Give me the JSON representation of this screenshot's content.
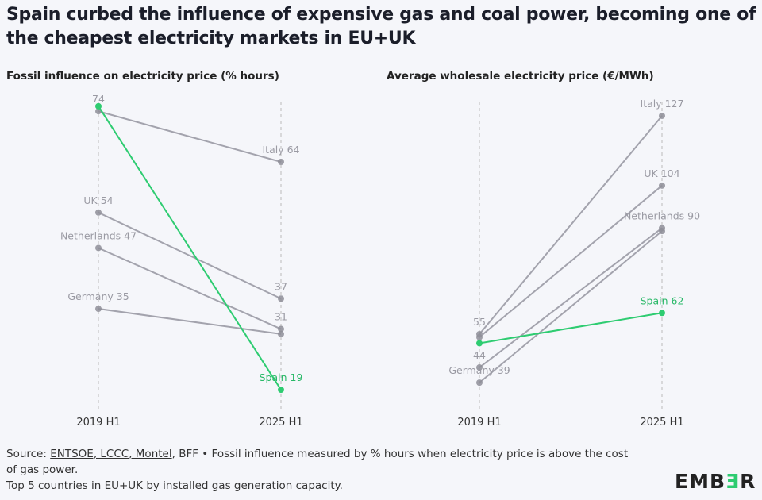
{
  "title": "Spain curbed the influence of expensive gas and coal power, becoming one of the cheapest electricity markets in EU+UK",
  "footer": {
    "source_label": "Source: ",
    "source_links": "ENTSOE, LCCC, Montel",
    "source_rest": ", BFF • Fossil influence measured by % hours when electricity price is above the cost of gas power.",
    "note": "Top 5 countries in EU+UK by installed gas generation capacity."
  },
  "logo": {
    "pre": "EMB",
    "mid": "Ǝ",
    "post": "R",
    "text": "EMBER"
  },
  "colors": {
    "grey": "#a3a3ad",
    "spain": "#2ecc71",
    "label_grey": "#9a9aa3"
  },
  "chart_data": [
    {
      "type": "line",
      "title": "Fossil influence on electricity price (% hours)",
      "categories": [
        "2019 H1",
        "2025 H1"
      ],
      "ylim": [
        15,
        80
      ],
      "series": [
        {
          "name": "Italy",
          "values": [
            74,
            64
          ],
          "labels": [
            "74",
            "Italy 64"
          ]
        },
        {
          "name": "UK",
          "values": [
            54,
            37
          ],
          "labels": [
            "UK 54",
            "37"
          ]
        },
        {
          "name": "Netherlands",
          "values": [
            47,
            31
          ],
          "labels": [
            "Netherlands 47",
            "31"
          ]
        },
        {
          "name": "Germany",
          "values": [
            35,
            30
          ],
          "labels": [
            "Germany 35",
            ""
          ]
        },
        {
          "name": "Spain",
          "values": [
            75,
            19
          ],
          "labels": [
            "",
            "Spain 19"
          ]
        }
      ]
    },
    {
      "type": "line",
      "title": "Average wholesale electricity price (€/MWh)",
      "categories": [
        "2019 H1",
        "2025 H1"
      ],
      "ylim": [
        30,
        135
      ],
      "series": [
        {
          "name": "Italy",
          "values": [
            55,
            127
          ],
          "labels": [
            "55",
            "Italy 127"
          ]
        },
        {
          "name": "UK",
          "values": [
            54,
            104
          ],
          "labels": [
            "",
            "UK 104"
          ]
        },
        {
          "name": "Netherlands",
          "values": [
            44,
            90
          ],
          "labels": [
            "44",
            "Netherlands 90"
          ]
        },
        {
          "name": "Germany",
          "values": [
            39,
            89
          ],
          "labels": [
            "Germany 39",
            ""
          ]
        },
        {
          "name": "Spain",
          "values": [
            52,
            62
          ],
          "labels": [
            "",
            "Spain 62"
          ]
        }
      ]
    }
  ]
}
